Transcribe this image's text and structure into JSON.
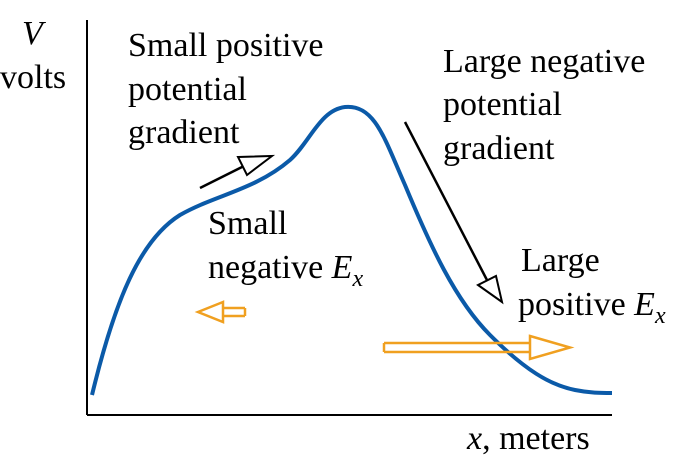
{
  "axes": {
    "y_symbol": "V",
    "y_unit": "volts",
    "x_symbol": "x",
    "x_unit": ", meters"
  },
  "annotations": {
    "left_gradient": [
      "Small positive",
      "potential",
      "gradient"
    ],
    "right_gradient": [
      "Large negative",
      "potential",
      "gradient"
    ],
    "left_field_line1": "Small",
    "left_field_line2_text": "negative ",
    "right_field_line1": "Large",
    "right_field_line2_text": "positive ",
    "field_symbol": "E",
    "field_subscript": "x"
  },
  "colors": {
    "curve": "#0b5aa8",
    "field_arrow": "#f0a020",
    "gradient_arrow": "#000000",
    "axis": "#000000"
  }
}
